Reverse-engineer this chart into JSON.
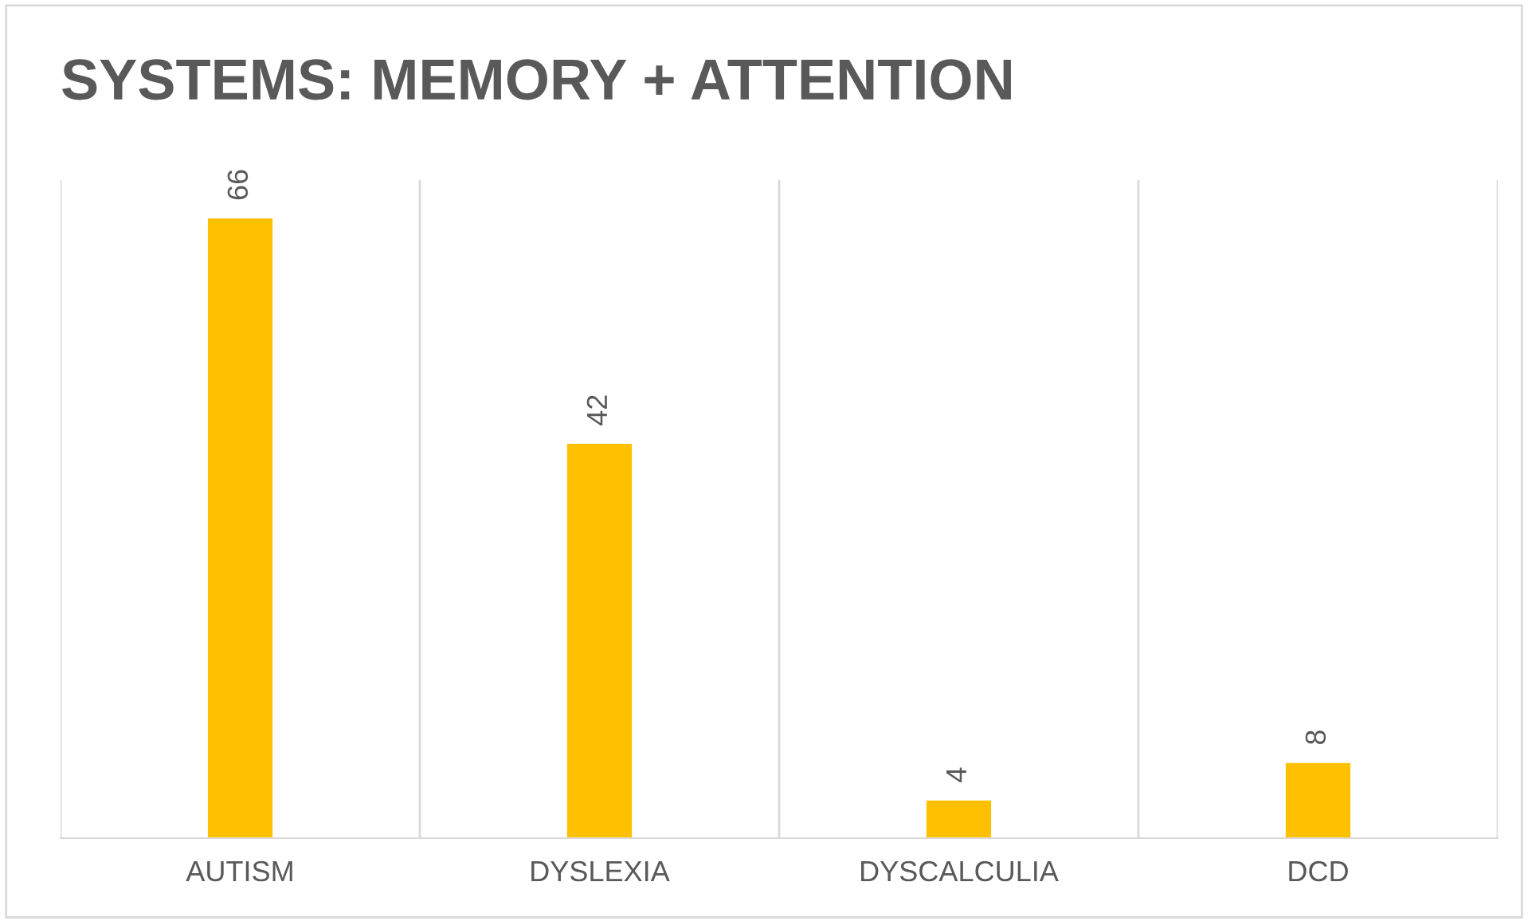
{
  "chart_data": {
    "type": "bar",
    "title": "SYSTEMS: MEMORY + ATTENTION",
    "categories": [
      "AUTISM",
      "DYSLEXIA",
      "DYSCALCULIA",
      "DCD"
    ],
    "values": [
      66,
      42,
      4,
      8
    ],
    "color": "#ffc000",
    "data_labels": true,
    "grid": "x",
    "legend": false
  }
}
